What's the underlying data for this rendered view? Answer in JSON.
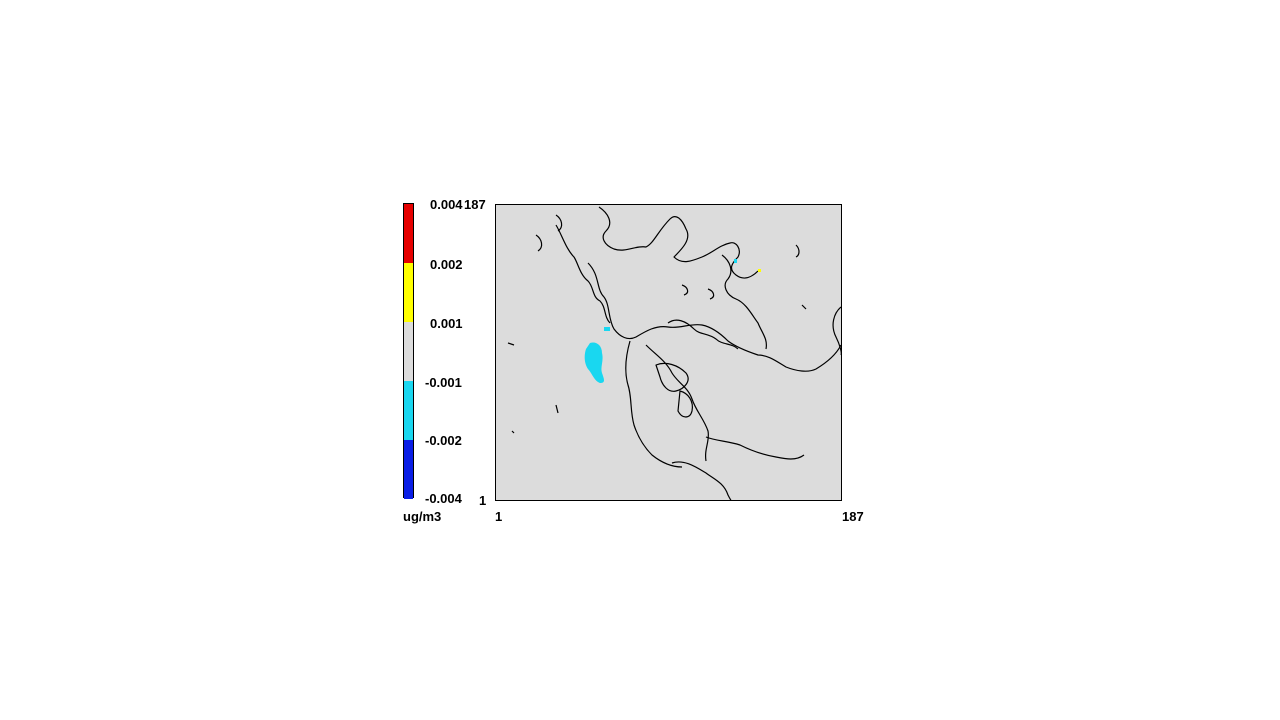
{
  "colorbar": {
    "unit": "ug/m3",
    "colors": [
      "#0a1ee6",
      "#19d7f0",
      "#dcdcdc",
      "#ffff00",
      "#e60000"
    ],
    "tick_labels": [
      "-0.004",
      "-0.002",
      "-0.001",
      "0.001",
      "0.002",
      "0.004"
    ]
  },
  "axes": {
    "x_min_label": "1",
    "x_max_label": "187",
    "y_min_label": "1",
    "y_max_label": "187"
  },
  "map": {
    "background_color": "#dcdcdc",
    "coastline_color": "#000000",
    "anomaly_color": "#19d7f0",
    "positive_color": "#ffff00"
  }
}
